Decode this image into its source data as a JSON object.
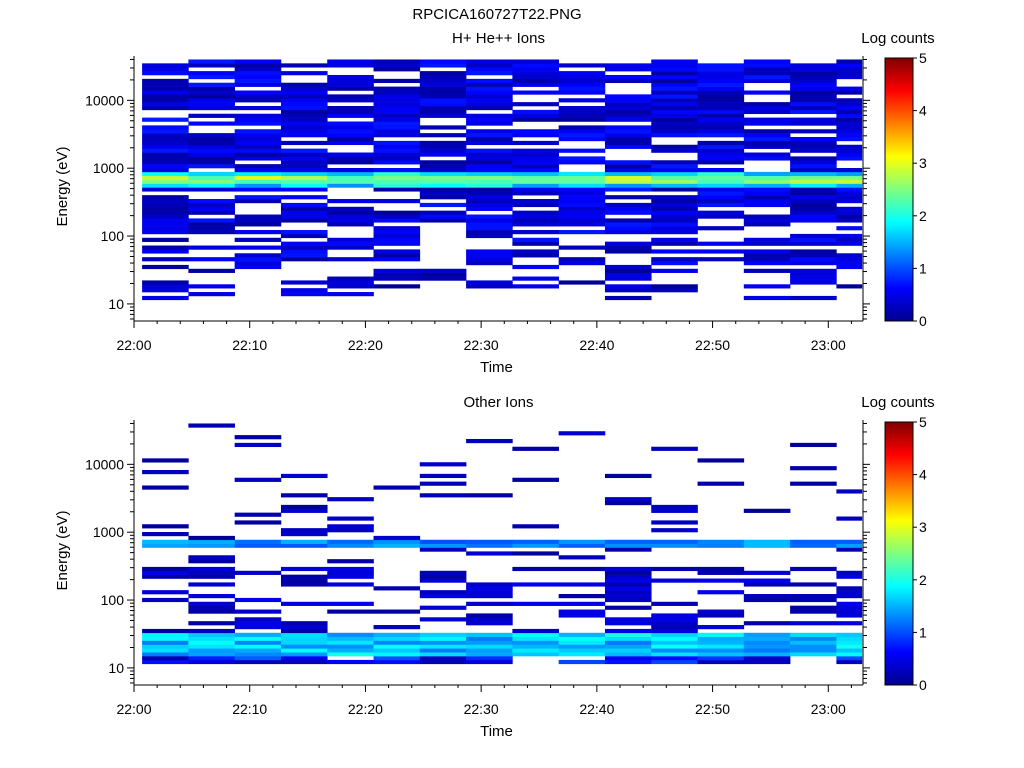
{
  "figure_title": "RPCICA160727T22.PNG",
  "chart_data": [
    {
      "type": "heatmap",
      "title": "H+ He++ Ions",
      "xlabel": "Time",
      "ylabel": "Energy (eV)",
      "x_ticks": [
        "22:00",
        "22:10",
        "22:20",
        "22:30",
        "22:40",
        "22:50",
        "23:00"
      ],
      "x_range": [
        "22:00",
        "23:03"
      ],
      "y_ticks": [
        "10",
        "100",
        "1000",
        "10000"
      ],
      "y_range": [
        5.6,
        45000
      ],
      "y_scale": "log",
      "colorbar": {
        "label": "Log counts",
        "range": [
          0,
          5
        ],
        "ticks": [
          "0",
          "1",
          "2",
          "3",
          "4",
          "5"
        ],
        "colormap": "jet"
      },
      "time_bins": [
        "22:00",
        "22:04",
        "22:08",
        "22:12",
        "22:16",
        "22:20",
        "22:24",
        "22:28",
        "22:32",
        "22:36",
        "22:40",
        "22:44",
        "22:48",
        "22:52",
        "22:56",
        "23:00"
      ],
      "notable_features": {
        "band_energy_eV": [
          550,
          850
        ],
        "band_log_counts": [
          2.2,
          3.0
        ],
        "background_log_counts": [
          0.1,
          0.8
        ],
        "upper_energy_eV": 40000,
        "lower_energy_eV": 10
      }
    },
    {
      "type": "heatmap",
      "title": "Other Ions",
      "xlabel": "Time",
      "ylabel": "Energy (eV)",
      "x_ticks": [
        "22:00",
        "22:10",
        "22:20",
        "22:30",
        "22:40",
        "22:50",
        "23:00"
      ],
      "x_range": [
        "22:00",
        "23:03"
      ],
      "y_ticks": [
        "10",
        "100",
        "1000",
        "10000"
      ],
      "y_range": [
        5.6,
        45000
      ],
      "y_scale": "log",
      "colorbar": {
        "label": "Log counts",
        "range": [
          0,
          5
        ],
        "ticks": [
          "0",
          "1",
          "2",
          "3",
          "4",
          "5"
        ],
        "colormap": "jet"
      },
      "time_bins": [
        "22:00",
        "22:04",
        "22:08",
        "22:12",
        "22:16",
        "22:20",
        "22:24",
        "22:28",
        "22:32",
        "22:36",
        "22:40",
        "22:44",
        "22:48",
        "22:52",
        "22:56",
        "23:00"
      ],
      "notable_features": {
        "band_energy_eV": [
          600,
          800
        ],
        "band_log_counts": [
          1.0,
          1.6
        ],
        "low_energy_band_eV": [
          15,
          35
        ],
        "low_energy_band_log_counts": [
          1.2,
          2.0
        ],
        "background_log_counts": [
          0.0,
          0.4
        ]
      }
    }
  ]
}
